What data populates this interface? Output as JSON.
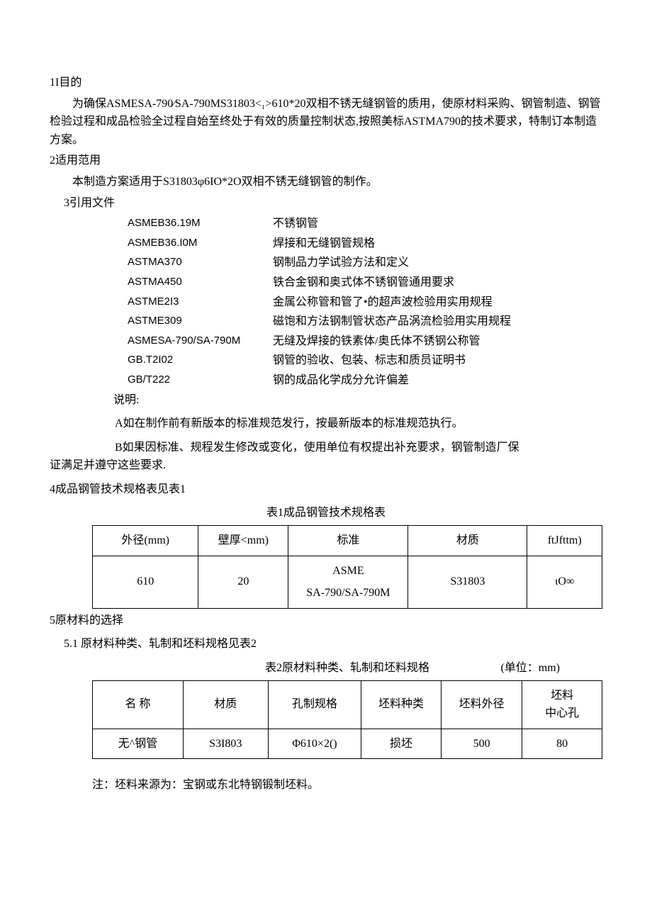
{
  "sections": {
    "s1": {
      "heading": "1I目的",
      "body": "为确保ASMESA-790⁄SA-790MS31803<₁>610*20双相不锈无缝钢管的质用，使原材料采购、钢管制造、钢管检验过程和成品检验全过程自始至终处于有效的质量控制状态,按照美标ASTMA790的技术要求，特制订本制造方案。"
    },
    "s2": {
      "heading": "2适用范用",
      "body": "本制造方案适用于S31803φ6IO*2O双相不锈无缝钢管的制作。"
    },
    "s3": {
      "heading": "3引用文件",
      "refs": [
        {
          "code": "ASMEB36.19M",
          "desc": "不锈钢管"
        },
        {
          "code": "ASMEB36.I0M",
          "desc": "焊接和无缝钢管规格"
        },
        {
          "code": "ASTMA370",
          "desc": "钢制品力学试验方法和定义"
        },
        {
          "code": "ASTMA450",
          "desc": "铁合金钢和奥式体不锈钢管通用要求"
        },
        {
          "code": "ASTME2I3",
          "desc": "金属公称管和管了•的超声波检验用实用规程"
        },
        {
          "code": "ASTME309",
          "desc": "磁饱和方法钢制管状态产品涡流检验用实用规程"
        },
        {
          "code": "ASMESA-790/SA-790M",
          "desc": "无缝及焊接的铁素体/奥氏体不锈钢公称管"
        },
        {
          "code": "GB.T2I02",
          "desc": "钢管的验收、包装、标志和质员证明书"
        },
        {
          "code": "GB/T222",
          "desc": "钢的成品化学成分允许偏差"
        }
      ],
      "shuoming": "说明:",
      "noteA": "A如在制作前有新版本的标准规范发行，按最新版本的标准规范执行。",
      "noteB": "B如果因标准、规程发生修改或变化，使用单位有权提出补充要求，钢管制造厂保证满足并遵守这些要求."
    },
    "s4": {
      "heading": "4成品钢管技术规格表见表1",
      "table_caption": "表1成品钢管技术规格表",
      "headers": [
        "外径(mm)",
        "壁厚<mm)",
        "标准",
        "材质",
        "ftJfttm)"
      ],
      "row": [
        "610",
        "20",
        "ASME\nSA-790/SA-790M",
        "S31803",
        "ιO∞"
      ],
      "col_widths": [
        "150",
        "120",
        "170",
        "170",
        "90"
      ]
    },
    "s5": {
      "heading": "5原材料的选择",
      "sub": "5.1   原材料种类、轧制和坯料规格见表2",
      "table_caption": "表2原材料种类、轧制和坯料规格",
      "unit": "(单位：mm)",
      "headers": [
        "名        称",
        "材质",
        "孔制规格",
        "坯料种类",
        "坯料外径",
        "坯料\n中心孔"
      ],
      "row": [
        "无^钢管",
        "S3I803",
        "Φ610×2()",
        "损坯",
        "500",
        "80"
      ],
      "col_widths": [
        "130",
        "110",
        "120",
        "110",
        "110",
        "110"
      ],
      "footnote": "注：坯料来源为：宝钢或东北特钢锻制坯料。"
    }
  }
}
